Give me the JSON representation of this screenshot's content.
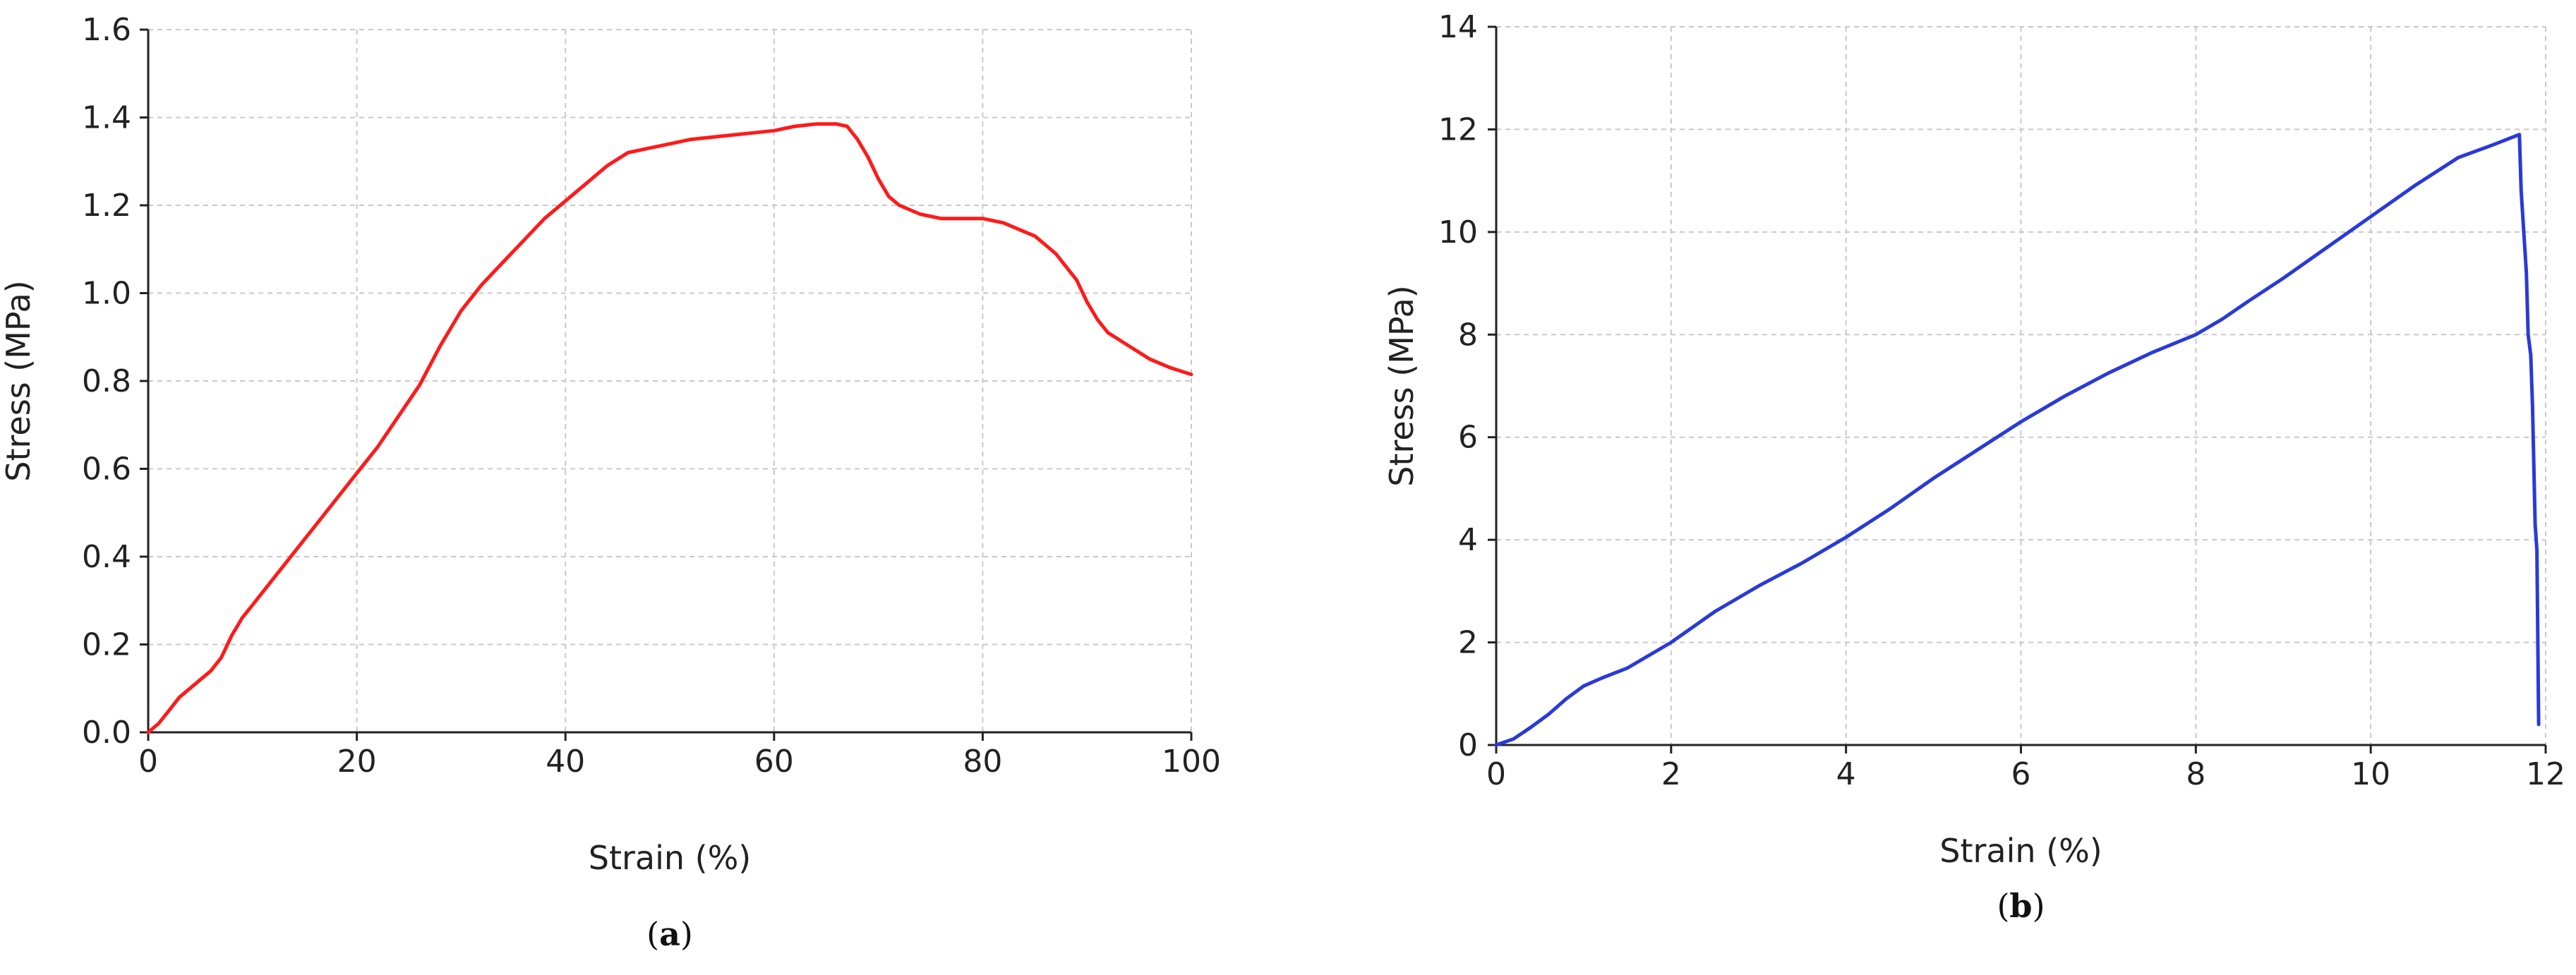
{
  "chart_data": [
    {
      "type": "line",
      "panel": "(a)",
      "panel_letter": "a",
      "xlabel": "Strain (%)",
      "ylabel": "Stress (MPa)",
      "xlim": [
        0,
        100
      ],
      "ylim": [
        0,
        1.6
      ],
      "xticks": [
        "0",
        "20",
        "40",
        "60",
        "80",
        "100"
      ],
      "yticks": [
        "0.0",
        "0.2",
        "0.4",
        "0.6",
        "0.8",
        "1.0",
        "1.2",
        "1.4",
        "1.6"
      ],
      "grid": true,
      "line_color": "#ff1a1a",
      "series": [
        {
          "x": [
            0,
            1,
            2,
            3,
            4,
            5,
            6,
            7,
            8,
            9,
            10,
            12,
            14,
            16,
            18,
            20,
            22,
            24,
            26,
            28,
            30,
            32,
            34,
            36,
            38,
            40,
            42,
            44,
            46,
            48,
            50,
            52,
            54,
            56,
            58,
            60,
            62,
            64,
            66,
            67,
            68,
            69,
            70,
            71,
            72,
            74,
            76,
            78,
            80,
            82,
            84,
            85,
            86,
            87,
            88,
            89,
            90,
            91,
            92,
            94,
            96,
            98,
            100
          ],
          "y": [
            0.0,
            0.02,
            0.05,
            0.08,
            0.1,
            0.12,
            0.14,
            0.17,
            0.22,
            0.26,
            0.29,
            0.35,
            0.41,
            0.47,
            0.53,
            0.59,
            0.65,
            0.72,
            0.79,
            0.88,
            0.96,
            1.02,
            1.07,
            1.12,
            1.17,
            1.21,
            1.25,
            1.29,
            1.32,
            1.33,
            1.34,
            1.35,
            1.355,
            1.36,
            1.365,
            1.37,
            1.38,
            1.385,
            1.385,
            1.38,
            1.35,
            1.31,
            1.26,
            1.22,
            1.2,
            1.18,
            1.17,
            1.17,
            1.17,
            1.16,
            1.14,
            1.13,
            1.11,
            1.09,
            1.06,
            1.03,
            0.98,
            0.94,
            0.91,
            0.88,
            0.85,
            0.83,
            0.815
          ]
        }
      ]
    },
    {
      "type": "line",
      "panel": "(b)",
      "panel_letter": "b",
      "xlabel": "Strain (%)",
      "ylabel": "Stress (MPa)",
      "xlim": [
        0,
        12
      ],
      "ylim": [
        0,
        14
      ],
      "xticks": [
        "0",
        "2",
        "4",
        "6",
        "8",
        "10",
        "12"
      ],
      "yticks": [
        "0",
        "2",
        "4",
        "6",
        "8",
        "10",
        "12",
        "14"
      ],
      "grid": true,
      "line_color": "#2a3ad8",
      "series": [
        {
          "x": [
            0,
            0.2,
            0.4,
            0.6,
            0.8,
            1.0,
            1.2,
            1.5,
            2.0,
            2.5,
            3.0,
            3.5,
            4.0,
            4.5,
            5.0,
            5.5,
            6.0,
            6.5,
            7.0,
            7.5,
            8.0,
            8.3,
            8.6,
            9.0,
            9.5,
            10.0,
            10.5,
            11.0,
            11.4,
            11.7,
            11.72,
            11.78,
            11.8,
            11.83,
            11.85,
            11.88,
            11.9,
            11.92
          ],
          "y": [
            0,
            0.12,
            0.35,
            0.6,
            0.9,
            1.15,
            1.3,
            1.5,
            2.0,
            2.6,
            3.1,
            3.55,
            4.05,
            4.6,
            5.2,
            5.75,
            6.3,
            6.8,
            7.25,
            7.65,
            8.0,
            8.3,
            8.65,
            9.1,
            9.7,
            10.3,
            10.9,
            11.45,
            11.7,
            11.9,
            10.8,
            9.2,
            8.0,
            7.6,
            6.6,
            4.3,
            3.8,
            0.4
          ]
        }
      ]
    }
  ]
}
